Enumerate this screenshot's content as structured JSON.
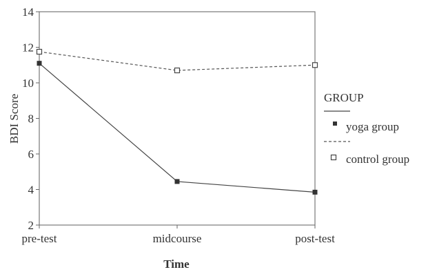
{
  "chart_data": {
    "type": "line",
    "categories": [
      "pre-test",
      "midcourse",
      "post-test"
    ],
    "xlabel": "Time",
    "ylabel": "BDI Score",
    "ylim": [
      2,
      14
    ],
    "yticks": [
      2,
      4,
      6,
      8,
      10,
      12,
      14
    ],
    "grid": false,
    "legend": {
      "title": "GROUP",
      "placement": "right"
    },
    "series": [
      {
        "name": "yoga group",
        "values": [
          11.1,
          4.45,
          3.85
        ],
        "line_style": "solid",
        "marker": "filled-square",
        "color": "#444444"
      },
      {
        "name": "control group",
        "values": [
          11.75,
          10.7,
          11.0
        ],
        "line_style": "dashed",
        "marker": "open-square",
        "color": "#555555"
      }
    ]
  }
}
